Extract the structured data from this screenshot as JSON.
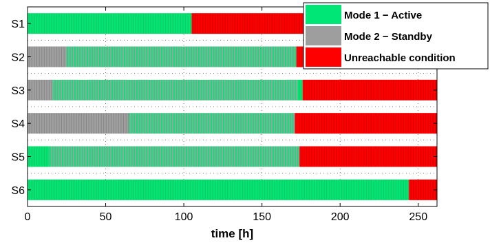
{
  "chart_data": {
    "type": "bar",
    "orientation": "horizontal-timeline",
    "title": "",
    "xlabel": "time [h]",
    "ylabel": "",
    "xlim": [
      0,
      262
    ],
    "xticks": [
      0,
      50,
      100,
      150,
      200,
      250
    ],
    "categories": [
      "S1",
      "S2",
      "S3",
      "S4",
      "S5",
      "S6"
    ],
    "legend_position": "top-right",
    "grid": "dotted",
    "states": [
      {
        "key": "active",
        "name": "Mode 1 − Active",
        "color": "#00e676"
      },
      {
        "key": "standby",
        "name": "Mode 2 − Standby",
        "color": "#9e9e9e"
      },
      {
        "key": "unreachable",
        "name": "Unreachable condition",
        "color": "#ff0000"
      }
    ],
    "series": [
      {
        "category": "S1",
        "segments": [
          {
            "state": "active",
            "start": 0,
            "end": 105
          },
          {
            "state": "unreachable",
            "start": 105,
            "end": 262
          }
        ]
      },
      {
        "category": "S2",
        "segments": [
          {
            "state": "standby",
            "start": 0,
            "end": 25
          },
          {
            "state": "mixed",
            "start": 25,
            "end": 172
          },
          {
            "state": "unreachable",
            "start": 172,
            "end": 262
          }
        ]
      },
      {
        "category": "S3",
        "segments": [
          {
            "state": "standby",
            "start": 0,
            "end": 16
          },
          {
            "state": "mixed",
            "start": 16,
            "end": 173
          },
          {
            "state": "active",
            "start": 173,
            "end": 176
          },
          {
            "state": "unreachable",
            "start": 176,
            "end": 262
          }
        ]
      },
      {
        "category": "S4",
        "segments": [
          {
            "state": "standby",
            "start": 0,
            "end": 65
          },
          {
            "state": "mixed",
            "start": 65,
            "end": 171
          },
          {
            "state": "unreachable",
            "start": 171,
            "end": 262
          }
        ]
      },
      {
        "category": "S5",
        "segments": [
          {
            "state": "active",
            "start": 0,
            "end": 14
          },
          {
            "state": "mixed",
            "start": 14,
            "end": 174
          },
          {
            "state": "unreachable",
            "start": 174,
            "end": 262
          }
        ]
      },
      {
        "category": "S6",
        "segments": [
          {
            "state": "active",
            "start": 0,
            "end": 244
          },
          {
            "state": "unreachable",
            "start": 244,
            "end": 262
          }
        ]
      }
    ]
  }
}
